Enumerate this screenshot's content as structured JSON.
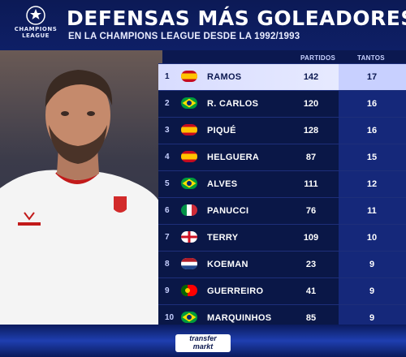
{
  "logo": {
    "line1": "CHAMPIONS",
    "line2": "LEAGUE"
  },
  "title": "DEFENSAS MÁS GOLEADORES",
  "subtitle": "EN LA CHAMPIONS LEAGUE DESDE LA 1992/1993",
  "columns": {
    "partidos": "PARTIDOS",
    "tantos": "TANTOS"
  },
  "rows": [
    {
      "rank": "1",
      "name": "RAMOS",
      "flag": "spain-flag",
      "partidos": "142",
      "tantos": "17"
    },
    {
      "rank": "2",
      "name": "R. CARLOS",
      "flag": "brazil-flag",
      "partidos": "120",
      "tantos": "16"
    },
    {
      "rank": "3",
      "name": "PIQUÉ",
      "flag": "spain-flag",
      "partidos": "128",
      "tantos": "16"
    },
    {
      "rank": "4",
      "name": "HELGUERA",
      "flag": "spain-flag",
      "partidos": "87",
      "tantos": "15"
    },
    {
      "rank": "5",
      "name": "ALVES",
      "flag": "brazil-flag",
      "partidos": "111",
      "tantos": "12"
    },
    {
      "rank": "6",
      "name": "PANUCCI",
      "flag": "italy-flag",
      "partidos": "76",
      "tantos": "11"
    },
    {
      "rank": "7",
      "name": "TERRY",
      "flag": "england-flag",
      "partidos": "109",
      "tantos": "10"
    },
    {
      "rank": "8",
      "name": "KOEMAN",
      "flag": "netherlands-flag",
      "partidos": "23",
      "tantos": "9"
    },
    {
      "rank": "9",
      "name": "GUERREIRO",
      "flag": "portugal-flag",
      "partidos": "41",
      "tantos": "9"
    },
    {
      "rank": "10",
      "name": "MARQUINHOS",
      "flag": "brazil-flag",
      "partidos": "85",
      "tantos": "9"
    }
  ],
  "footer": {
    "brand_line1": "transfer",
    "brand_line2": "markt"
  },
  "colors": {
    "background": "#0b1850",
    "highlight": "#e3e7ff",
    "tantos_column": "#15287a"
  }
}
